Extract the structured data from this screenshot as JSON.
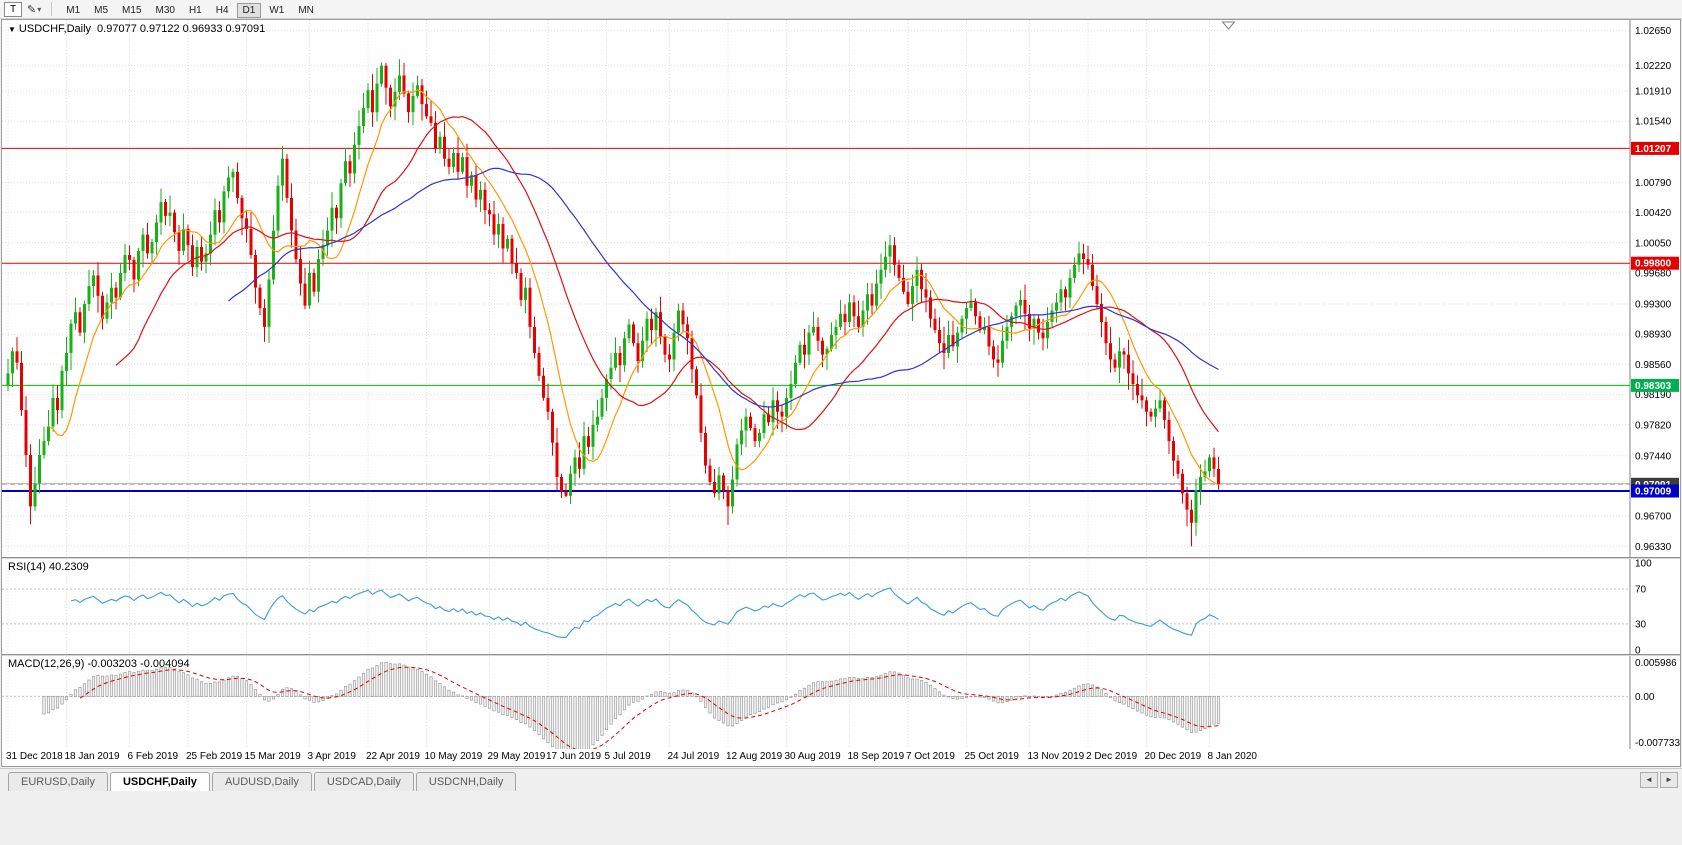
{
  "toolbar": {
    "tool_t_label": "T",
    "drawing_tool_icon": "pencil-icon",
    "timeframes": [
      "M1",
      "M5",
      "M15",
      "M30",
      "H1",
      "H4",
      "D1",
      "W1",
      "MN"
    ],
    "active_timeframe": "D1"
  },
  "chart": {
    "title": "USDCHF,Daily",
    "ohlc_text": "0.97077 0.97122 0.96933 0.97091",
    "price_ticks": [
      "1.02650",
      "1.02220",
      "1.01910",
      "1.01540",
      "1.00790",
      "1.00420",
      "1.00050",
      "0.99680",
      "0.99300",
      "0.98930",
      "0.98560",
      "0.98190",
      "0.97820",
      "0.97440",
      "0.96700",
      "0.96330"
    ],
    "levels": [
      {
        "price": 1.01207,
        "label": "1.01207",
        "color": "#E60000",
        "badge": "#E60000",
        "style": "solid",
        "width": 1
      },
      {
        "price": 0.998,
        "label": "0.99800",
        "color": "#E60000",
        "badge": "#E60000",
        "style": "solid",
        "width": 1
      },
      {
        "price": 0.98303,
        "label": "0.98303",
        "color": "#00C000",
        "badge": "#00B050",
        "style": "solid",
        "width": 1
      },
      {
        "price": 0.971,
        "label": "",
        "color": "#B8B8B8",
        "badge": "",
        "style": "solid",
        "width": 1
      },
      {
        "price": 0.97091,
        "label": "0.97091",
        "color": "#A9A9A9",
        "badge": "#3C3C3C",
        "style": "dash",
        "width": 1
      },
      {
        "price": 0.97009,
        "label": "0.97009",
        "color": "#0000C8",
        "badge": "#0000C8",
        "style": "solid",
        "width": 2
      }
    ]
  },
  "rsi": {
    "name": "RSI(14)",
    "value": "40.2309",
    "ticks": [
      "100",
      "70",
      "30",
      "0"
    ],
    "levels": [
      70,
      30
    ],
    "period": 14
  },
  "macd": {
    "name": "MACD(12,26,9)",
    "values": "-0.003203 -0.004094",
    "ticks": [
      "0.005986",
      "0.00",
      "-0.007733"
    ],
    "fast": 12,
    "slow": 26,
    "signal": 9
  },
  "time_axis": [
    {
      "label": "31 Dec 2018",
      "i": 0
    },
    {
      "label": "18 Jan 2019",
      "i": 13
    },
    {
      "label": "6 Feb 2019",
      "i": 27
    },
    {
      "label": "25 Feb 2019",
      "i": 40
    },
    {
      "label": "15 Mar 2019",
      "i": 53
    },
    {
      "label": "3 Apr 2019",
      "i": 67
    },
    {
      "label": "22 Apr 2019",
      "i": 80
    },
    {
      "label": "10 May 2019",
      "i": 93
    },
    {
      "label": "29 May 2019",
      "i": 107
    },
    {
      "label": "17 Jun 2019",
      "i": 120
    },
    {
      "label": "5 Jul 2019",
      "i": 133
    },
    {
      "label": "24 Jul 2019",
      "i": 147
    },
    {
      "label": "12 Aug 2019",
      "i": 160
    },
    {
      "label": "30 Aug 2019",
      "i": 173
    },
    {
      "label": "18 Sep 2019",
      "i": 187
    },
    {
      "label": "7 Oct 2019",
      "i": 200
    },
    {
      "label": "25 Oct 2019",
      "i": 213
    },
    {
      "label": "13 Nov 2019",
      "i": 227
    },
    {
      "label": "2 Dec 2019",
      "i": 240
    },
    {
      "label": "20 Dec 2019",
      "i": 253
    },
    {
      "label": "8 Jan 2020",
      "i": 267
    }
  ],
  "tabs": {
    "items": [
      "EURUSD,Daily",
      "USDCHF,Daily",
      "AUDUSD,Daily",
      "USDCAD,Daily",
      "USDCNH,Daily"
    ],
    "active_index": 1,
    "scroll_left": "◄",
    "scroll_right": "►"
  },
  "chart_data": {
    "type": "candlestick",
    "symbol": "USDCHF",
    "timeframe": "Daily",
    "ylim": [
      0.962,
      1.0278
    ],
    "macd_ylim": [
      -0.0082,
      0.0063
    ],
    "first_open": 0.983,
    "closes": [
      0.9845,
      0.9872,
      0.9858,
      0.98,
      0.9745,
      0.9682,
      0.971,
      0.9745,
      0.9762,
      0.978,
      0.9815,
      0.98,
      0.9848,
      0.987,
      0.9906,
      0.992,
      0.9895,
      0.993,
      0.9952,
      0.9965,
      0.994,
      0.9912,
      0.9932,
      0.995,
      0.9938,
      0.9968,
      0.999,
      0.9984,
      0.996,
      0.9995,
      1.0015,
      0.9992,
      1.0006,
      1.003,
      1.0055,
      1.0038,
      1.0042,
      1.0018,
      0.9995,
      1.0022,
      1.0002,
      0.9975,
      1.0,
      0.9982,
      0.9992,
      1.0015,
      1.0045,
      1.003,
      1.0068,
      1.0085,
      1.0092,
      1.006,
      1.0035,
      1.0022,
      0.999,
      0.995,
      0.9925,
      0.9902,
      0.996,
      1.002,
      1.0075,
      1.0108,
      1.006,
      1.002,
      0.9985,
      0.9955,
      0.9928,
      0.9968,
      0.9945,
      0.9985,
      1.0002,
      1.002,
      1.0048,
      1.0035,
      1.0078,
      1.0105,
      1.009,
      1.0125,
      1.0148,
      1.017,
      1.0192,
      1.0165,
      1.02,
      1.0222,
      1.0195,
      1.0172,
      1.019,
      1.021,
      1.0188,
      1.0165,
      1.0185,
      1.0198,
      1.0175,
      1.016,
      1.0152,
      1.012,
      1.0135,
      1.0108,
      1.0098,
      1.0115,
      1.0092,
      1.011,
      1.0075,
      1.0088,
      1.0058,
      1.007,
      1.0045,
      1.004,
      1.0015,
      1.0028,
      0.9998,
      1.001,
      0.998,
      0.9968,
      0.9935,
      0.995,
      0.9902,
      0.987,
      0.9842,
      0.9815,
      0.9798,
      0.976,
      0.9718,
      0.97,
      0.9695,
      0.9722,
      0.9742,
      0.9728,
      0.9768,
      0.9755,
      0.9782,
      0.9792,
      0.9815,
      0.9838,
      0.9852,
      0.987,
      0.9855,
      0.9888,
      0.9905,
      0.9882,
      0.986,
      0.9885,
      0.9912,
      0.9898,
      0.992,
      0.989,
      0.9868,
      0.9862,
      0.9895,
      0.9922,
      0.9905,
      0.9888,
      0.985,
      0.9818,
      0.9772,
      0.9732,
      0.9712,
      0.9698,
      0.972,
      0.9702,
      0.9682,
      0.9715,
      0.9758,
      0.9775,
      0.9792,
      0.9778,
      0.9762,
      0.9772,
      0.9795,
      0.9785,
      0.9812,
      0.9798,
      0.9792,
      0.9815,
      0.9832,
      0.9858,
      0.988,
      0.9868,
      0.9895,
      0.9902,
      0.9885,
      0.9868,
      0.9875,
      0.9892,
      0.9902,
      0.9918,
      0.9908,
      0.9932,
      0.9915,
      0.9902,
      0.9922,
      0.9942,
      0.9928,
      0.9955,
      0.9972,
      0.9988,
      1.0002,
      0.9978,
      0.9962,
      0.9945,
      0.993,
      0.9952,
      0.9972,
      0.9948,
      0.9938,
      0.9912,
      0.9898,
      0.9882,
      0.987,
      0.9892,
      0.9878,
      0.9895,
      0.9912,
      0.9925,
      0.9932,
      0.9915,
      0.9898,
      0.9902,
      0.9878,
      0.9862,
      0.9858,
      0.9885,
      0.9902,
      0.9915,
      0.9928,
      0.9935,
      0.9918,
      0.99,
      0.9912,
      0.9895,
      0.9888,
      0.9908,
      0.9922,
      0.9932,
      0.9948,
      0.9938,
      0.9962,
      0.9978,
      0.9992,
      0.9985,
      0.9978,
      0.9952,
      0.993,
      0.9908,
      0.9882,
      0.9862,
      0.9852,
      0.9872,
      0.9868,
      0.9845,
      0.9832,
      0.9818,
      0.9812,
      0.9798,
      0.9792,
      0.9802,
      0.9812,
      0.9788,
      0.9762,
      0.9738,
      0.9722,
      0.9698,
      0.9678,
      0.9662,
      0.9702,
      0.9718,
      0.9725,
      0.9742,
      0.9728,
      0.97091
    ],
    "wick_overrides": {
      "5": {
        "low": 0.966
      },
      "83": {
        "high": 1.0226
      },
      "124": {
        "low": 0.9693
      },
      "160": {
        "low": 0.9659
      },
      "263": {
        "low": 0.9633
      },
      "267": {
        "high": 0.9746
      }
    },
    "moving_averages": [
      {
        "period": 10,
        "color": "#FF9900"
      },
      {
        "period": 25,
        "color": "#DD1111"
      },
      {
        "period": 50,
        "color": "#3333CC"
      }
    ],
    "colors": {
      "up": "#17B217",
      "down": "#E60000",
      "rsi": "#3A9BDC",
      "macd_hist_fill": "#F4F4F4",
      "macd_hist_stroke": "#9A9A9A",
      "macd_signal": "#E00000"
    }
  }
}
